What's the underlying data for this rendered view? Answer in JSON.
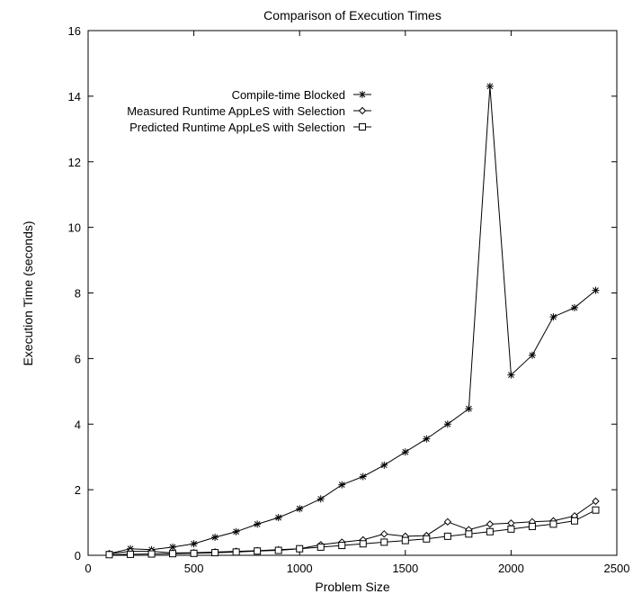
{
  "chart_data": {
    "type": "line",
    "title": "Comparison of Execution Times",
    "xlabel": "Problem Size",
    "ylabel": "Execution Time (seconds)",
    "xlim": [
      0,
      2500
    ],
    "ylim": [
      0,
      16
    ],
    "xticks": [
      0,
      500,
      1000,
      1500,
      2000,
      2500
    ],
    "yticks": [
      0,
      2,
      4,
      6,
      8,
      10,
      12,
      14,
      16
    ],
    "grid": false,
    "legend_position": "top-right",
    "x": [
      100,
      200,
      300,
      400,
      500,
      600,
      700,
      800,
      900,
      1000,
      1100,
      1200,
      1300,
      1400,
      1500,
      1600,
      1700,
      1800,
      1900,
      2000,
      2100,
      2200,
      2300,
      2400
    ],
    "series": [
      {
        "name": "Compile-time Blocked",
        "marker": "asterisk",
        "values": [
          0.05,
          0.2,
          0.17,
          0.25,
          0.35,
          0.55,
          0.72,
          0.95,
          1.15,
          1.42,
          1.72,
          2.15,
          2.4,
          2.75,
          3.15,
          3.55,
          4.0,
          4.47,
          14.3,
          5.5,
          6.1,
          7.27,
          7.55,
          8.08
        ]
      },
      {
        "name": "Measured Runtime AppLeS with Selection",
        "marker": "diamond",
        "values": [
          0.05,
          0.12,
          0.12,
          0.07,
          0.08,
          0.1,
          0.12,
          0.14,
          0.17,
          0.2,
          0.32,
          0.4,
          0.47,
          0.65,
          0.58,
          0.6,
          1.02,
          0.78,
          0.95,
          0.98,
          1.02,
          1.05,
          1.2,
          1.65
        ]
      },
      {
        "name": "Predicted Runtime AppLeS with Selection",
        "marker": "square",
        "values": [
          0.02,
          0.03,
          0.04,
          0.05,
          0.06,
          0.08,
          0.1,
          0.13,
          0.15,
          0.2,
          0.25,
          0.3,
          0.35,
          0.4,
          0.45,
          0.5,
          0.58,
          0.65,
          0.72,
          0.8,
          0.88,
          0.95,
          1.05,
          1.38
        ]
      }
    ]
  }
}
